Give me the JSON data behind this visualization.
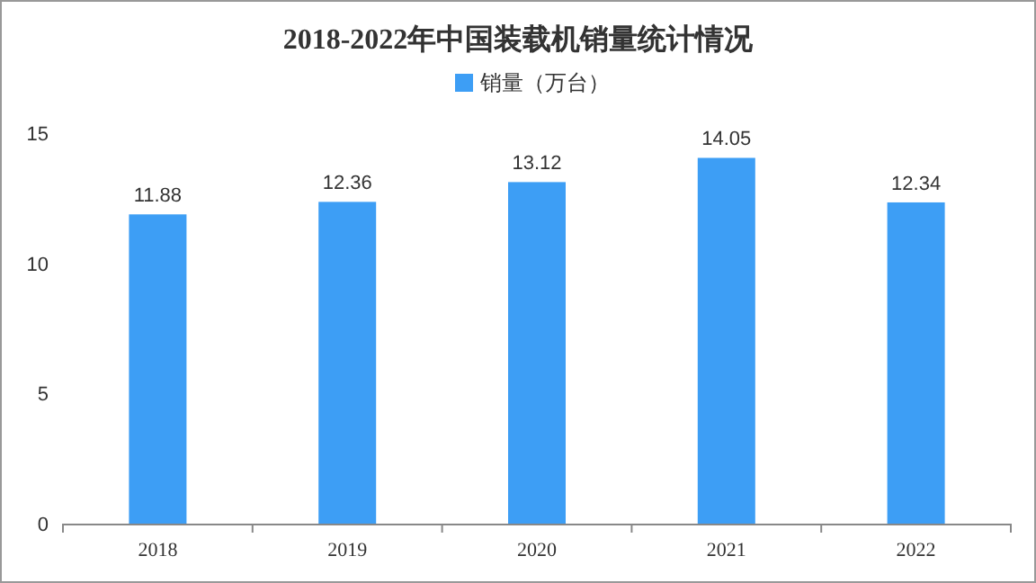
{
  "chart_data": {
    "type": "bar",
    "title": "2018-2022年中国装载机销量统计情况",
    "categories": [
      "2018",
      "2019",
      "2020",
      "2021",
      "2022"
    ],
    "series": [
      {
        "name": "销量（万台）",
        "color": "#3d9ef5",
        "values": [
          11.88,
          12.36,
          13.12,
          14.05,
          12.34
        ]
      }
    ],
    "ylim": [
      0,
      15
    ],
    "yticks": [
      0,
      5,
      10,
      15
    ],
    "grid": false,
    "legend": "top",
    "data_labels": true
  }
}
